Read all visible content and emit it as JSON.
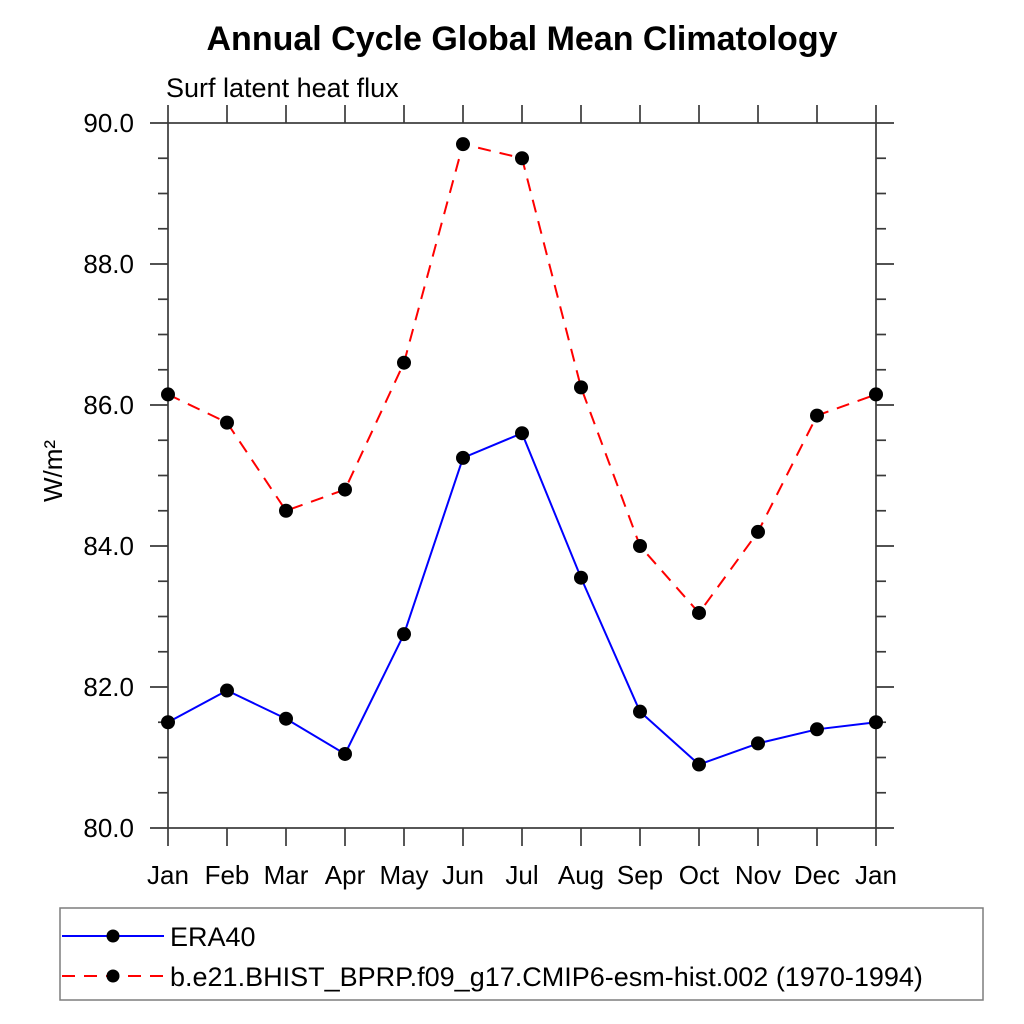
{
  "chart_data": {
    "type": "line",
    "title": "Annual Cycle Global Mean Climatology",
    "subtitle": "Surf latent heat flux",
    "ylabel": "W/m²",
    "xlabel": "",
    "categories": [
      "Jan",
      "Feb",
      "Mar",
      "Apr",
      "May",
      "Jun",
      "Jul",
      "Aug",
      "Sep",
      "Oct",
      "Nov",
      "Dec",
      "Jan"
    ],
    "series": [
      {
        "name": "ERA40",
        "color": "#0000ff",
        "line_style": "solid",
        "marker": "filled-circle",
        "marker_color": "#000000",
        "values": [
          81.5,
          81.95,
          81.55,
          81.05,
          82.75,
          85.25,
          85.6,
          83.55,
          81.65,
          80.9,
          81.2,
          81.4,
          81.5
        ]
      },
      {
        "name": "b.e21.BHIST_BPRP.f09_g17.CMIP6-esm-hist.002 (1970-1994)",
        "color": "#ff0000",
        "line_style": "dashed",
        "marker": "filled-circle",
        "marker_color": "#000000",
        "values": [
          86.15,
          85.75,
          84.5,
          84.8,
          86.6,
          89.7,
          89.5,
          86.25,
          84.0,
          83.05,
          84.2,
          85.85,
          86.15
        ]
      }
    ],
    "ylim": [
      80.0,
      90.0
    ],
    "yticks": [
      80.0,
      82.0,
      84.0,
      86.0,
      88.0,
      90.0
    ],
    "ytick_labels": [
      "80.0",
      "82.0",
      "84.0",
      "86.0",
      "88.0",
      "90.0"
    ],
    "y_minor_step": 0.5,
    "grid": false,
    "legend_position": "bottom-left"
  }
}
